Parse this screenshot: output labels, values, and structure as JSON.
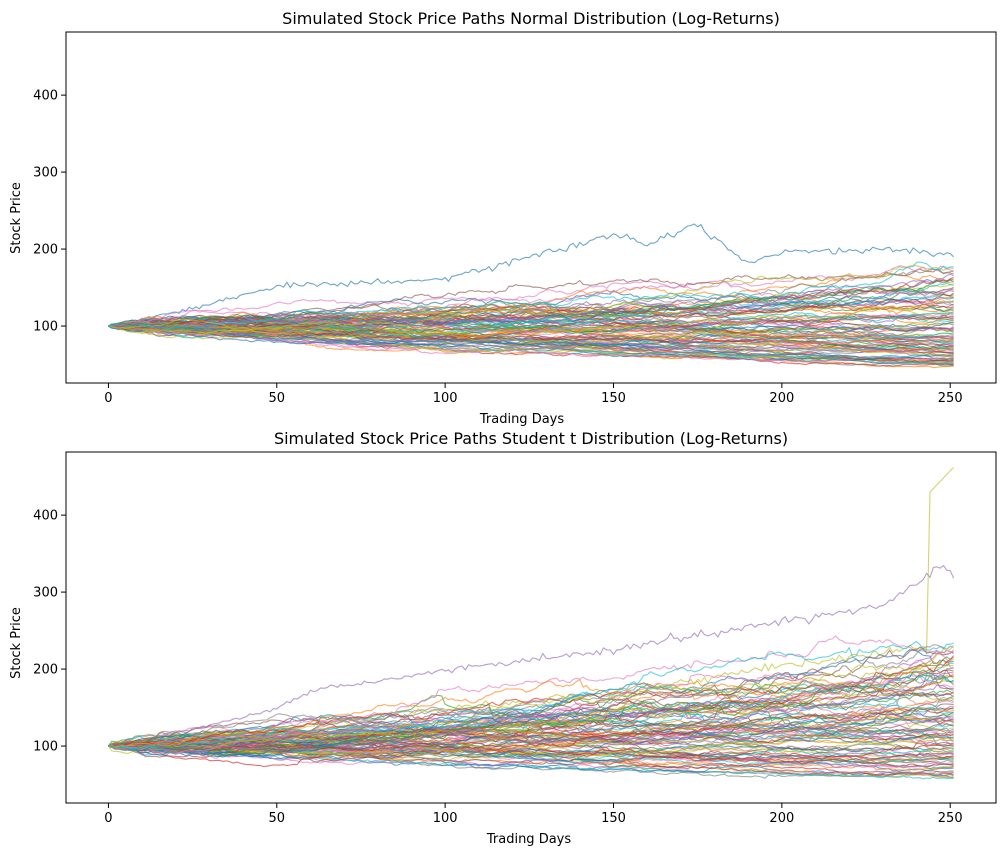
{
  "chart_data": [
    {
      "type": "line",
      "title": "Simulated Stock Price Paths Normal Distribution (Log-Returns)",
      "xlabel": "Trading Days",
      "ylabel": "Stock Price",
      "xlim": [
        -12.6,
        263.6
      ],
      "ylim": [
        26,
        482
      ],
      "xticks": [
        0,
        50,
        100,
        150,
        200,
        250
      ],
      "yticks": [
        100,
        200,
        300,
        400
      ],
      "x_range": [
        0,
        251
      ],
      "start_value": 100,
      "num_paths": 100,
      "final_value_range": [
        47,
        190
      ],
      "overall_min": 47,
      "overall_max": 233,
      "highlighted_path": {
        "peak": 233,
        "peak_day": 175,
        "final": 190
      },
      "grid": false,
      "legend": "none"
    },
    {
      "type": "line",
      "title": "Simulated Stock Price Paths Student t Distribution (Log-Returns)",
      "xlabel": "Trading Days",
      "ylabel": "Stock Price",
      "xlim": [
        -12.6,
        263.6
      ],
      "ylim": [
        26,
        482
      ],
      "xticks": [
        0,
        50,
        100,
        150,
        200,
        250
      ],
      "yticks": [
        100,
        200,
        300,
        400
      ],
      "x_range": [
        0,
        251
      ],
      "start_value": 100,
      "num_paths": 100,
      "final_value_range": [
        58,
        462
      ],
      "overall_min": 58,
      "overall_max": 462,
      "highlighted_paths": [
        {
          "jump_day": 244,
          "before_jump": 230,
          "after_jump": 430,
          "final": 462
        },
        {
          "peak": 336,
          "peak_day": 248,
          "final": 318
        }
      ],
      "grid": false,
      "legend": "none"
    }
  ],
  "colors": [
    "#1f77b4",
    "#ff7f0e",
    "#2ca02c",
    "#d62728",
    "#9467bd",
    "#8c564b",
    "#e377c2",
    "#7f7f7f",
    "#bcbd22",
    "#17becf"
  ]
}
